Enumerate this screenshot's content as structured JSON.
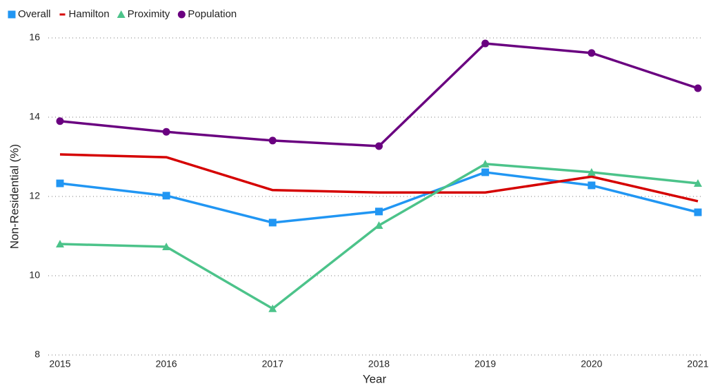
{
  "chart_data": {
    "type": "line",
    "xlabel": "Year",
    "ylabel": "Non-Residential (%)",
    "categories": [
      "2015",
      "2016",
      "2017",
      "2018",
      "2019",
      "2020",
      "2021"
    ],
    "series": [
      {
        "name": "Overall",
        "color": "#2196f3",
        "marker": "square",
        "values": [
          12.33,
          12.02,
          11.34,
          11.62,
          12.61,
          12.28,
          11.6
        ]
      },
      {
        "name": "Hamilton",
        "color": "#d50000",
        "marker": "dash",
        "values": [
          13.06,
          12.99,
          12.16,
          12.1,
          12.1,
          12.5,
          11.88
        ]
      },
      {
        "name": "Proximity",
        "color": "#4cc38a",
        "marker": "triangle",
        "values": [
          10.8,
          10.73,
          9.17,
          11.27,
          12.82,
          12.61,
          12.33
        ]
      },
      {
        "name": "Population",
        "color": "#6a0080",
        "marker": "circle",
        "values": [
          13.9,
          13.63,
          13.41,
          13.27,
          15.86,
          15.62,
          14.73
        ]
      }
    ],
    "ylim": [
      8,
      16
    ],
    "yticks": [
      8,
      10,
      12,
      14,
      16
    ],
    "grid": true,
    "legend": "top-left"
  }
}
